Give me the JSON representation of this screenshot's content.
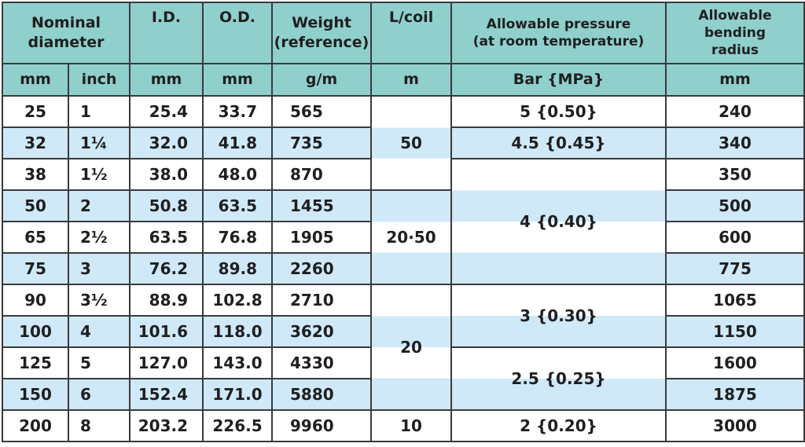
{
  "headers": {
    "nominal_diameter": "Nominal diameter",
    "id": "I.D.",
    "od": "O.D.",
    "weight_line1": "Weight",
    "weight_line2": "(reference)",
    "lcoil": "L/coil",
    "pressure_line1": "Allowable pressure",
    "pressure_line2": "(at room temperature)",
    "bending_line1": "Allowable bending",
    "bending_line2": "radius"
  },
  "units": {
    "mm": "mm",
    "inch": "inch",
    "id": "mm",
    "od": "mm",
    "weight": "g/m",
    "lcoil": "m",
    "pressure": "Bar {MPa}",
    "bending": "mm"
  },
  "rows": [
    {
      "mm": "25",
      "inch": "1",
      "id": "25.4",
      "od": "33.7",
      "weight": "565",
      "bend": "240"
    },
    {
      "mm": "32",
      "inch": "1¼",
      "id": "32.0",
      "od": "41.8",
      "weight": "735",
      "bend": "340"
    },
    {
      "mm": "38",
      "inch": "1½",
      "id": "38.0",
      "od": "48.0",
      "weight": "870",
      "bend": "350"
    },
    {
      "mm": "50",
      "inch": "2",
      "id": "50.8",
      "od": "63.5",
      "weight": "1455",
      "bend": "500"
    },
    {
      "mm": "65",
      "inch": "2½",
      "id": "63.5",
      "od": "76.8",
      "weight": "1905",
      "bend": "600"
    },
    {
      "mm": "75",
      "inch": "3",
      "id": "76.2",
      "od": "89.8",
      "weight": "2260",
      "bend": "775"
    },
    {
      "mm": "90",
      "inch": "3½",
      "id": "88.9",
      "od": "102.8",
      "weight": "2710",
      "bend": "1065"
    },
    {
      "mm": "100",
      "inch": "4",
      "id": "101.6",
      "od": "118.0",
      "weight": "3620",
      "bend": "1150"
    },
    {
      "mm": "125",
      "inch": "5",
      "id": "127.0",
      "od": "143.0",
      "weight": "4330",
      "bend": "1600"
    },
    {
      "mm": "150",
      "inch": "6",
      "id": "152.4",
      "od": "171.0",
      "weight": "5880",
      "bend": "1875"
    },
    {
      "mm": "200",
      "inch": "8",
      "id": "203.2",
      "od": "226.5",
      "weight": "9960",
      "bend": "3000"
    }
  ],
  "lcoil_groups": [
    "50",
    "20·50",
    "20",
    "10"
  ],
  "pressure_groups": [
    "5 {0.50}",
    "4.5 {0.45}",
    "4 {0.40}",
    "3 {0.30}",
    "2.5 {0.25}",
    "2 {0.20}"
  ],
  "colors": {
    "header_bg": "#8fd0cd",
    "stripe_bg": "#cfe9f9",
    "border": "#3a3a3a"
  }
}
